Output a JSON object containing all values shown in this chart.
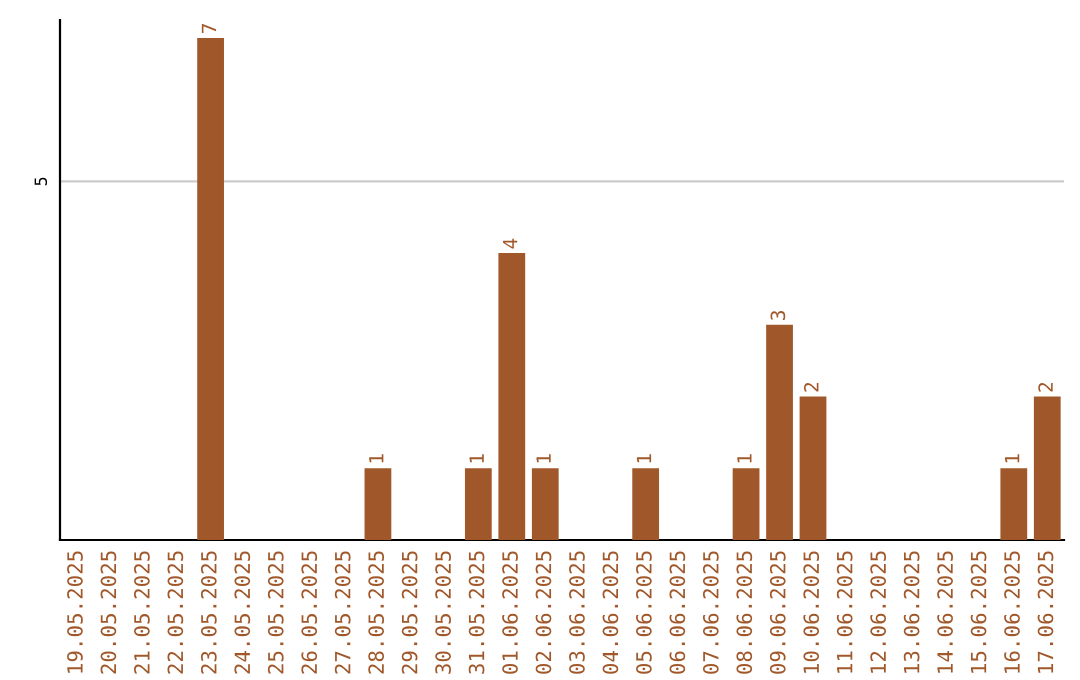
{
  "chart_data": {
    "type": "bar",
    "categories": [
      "19.05.2025",
      "20.05.2025",
      "21.05.2025",
      "22.05.2025",
      "23.05.2025",
      "24.05.2025",
      "25.05.2025",
      "26.05.2025",
      "27.05.2025",
      "28.05.2025",
      "29.05.2025",
      "30.05.2025",
      "31.05.2025",
      "01.06.2025",
      "02.06.2025",
      "03.06.2025",
      "04.06.2025",
      "05.06.2025",
      "06.06.2025",
      "07.06.2025",
      "08.06.2025",
      "09.06.2025",
      "10.06.2025",
      "11.06.2025",
      "12.06.2025",
      "13.06.2025",
      "14.06.2025",
      "15.06.2025",
      "16.06.2025",
      "17.06.2025"
    ],
    "values": [
      0,
      0,
      0,
      0,
      7,
      0,
      0,
      0,
      0,
      1,
      0,
      0,
      1,
      4,
      1,
      0,
      0,
      1,
      0,
      0,
      1,
      3,
      2,
      0,
      0,
      0,
      0,
      0,
      1,
      2
    ],
    "value_labels": [
      null,
      null,
      null,
      null,
      "7",
      null,
      null,
      null,
      null,
      "1",
      null,
      null,
      "1",
      "4",
      "1",
      null,
      null,
      "1",
      null,
      null,
      "1",
      "3",
      "2",
      null,
      null,
      null,
      null,
      null,
      "1",
      "2"
    ],
    "color": "#a0582a",
    "ylim": [
      0,
      7.25
    ],
    "yticks": [
      5
    ],
    "grid": "y"
  }
}
